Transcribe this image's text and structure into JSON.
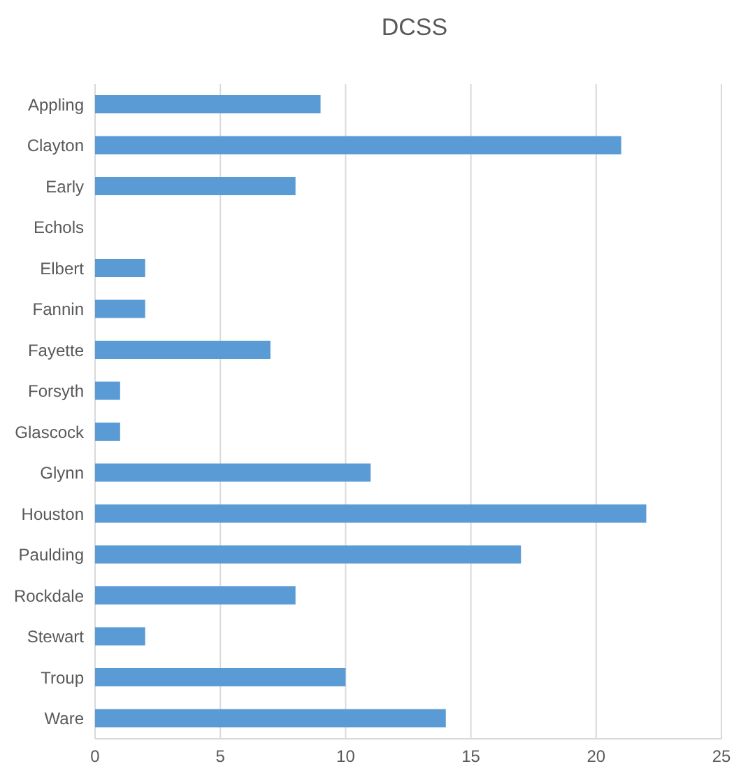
{
  "chart_data": {
    "type": "bar",
    "title": "DCSS",
    "orientation": "horizontal",
    "categories": [
      "Appling",
      "Clayton",
      "Early",
      "Echols",
      "Elbert",
      "Fannin",
      "Fayette",
      "Forsyth",
      "Glascock",
      "Glynn",
      "Houston",
      "Paulding",
      "Rockdale",
      "Stewart",
      "Troup",
      "Ware"
    ],
    "values": [
      9,
      21,
      8,
      0,
      2,
      2,
      7,
      1,
      1,
      11,
      22,
      17,
      8,
      2,
      10,
      14
    ],
    "color": "#5b9bd5",
    "xlim": [
      0,
      25
    ],
    "xticks": [
      0,
      5,
      10,
      15,
      20,
      25
    ],
    "grid": "x",
    "legend": false
  }
}
